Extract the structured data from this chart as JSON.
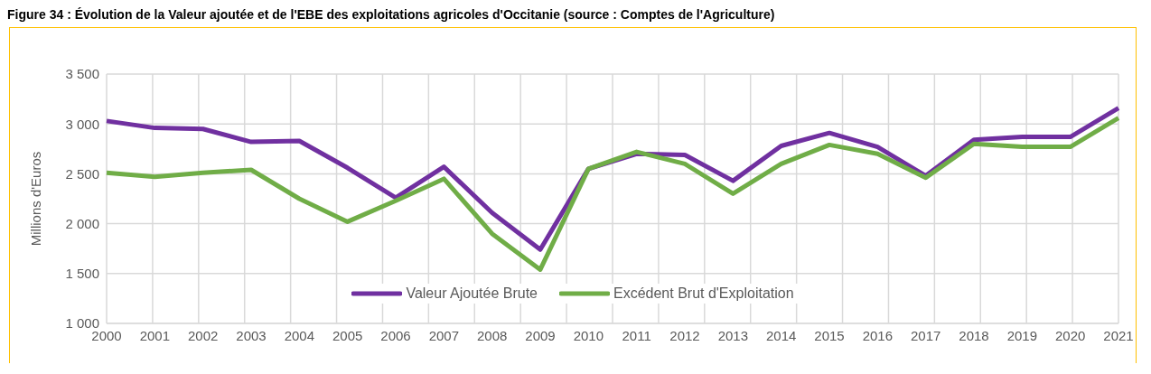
{
  "chart_data": {
    "type": "line",
    "title": "Figure 34 : Évolution de la Valeur ajoutée et de l'EBE des exploitations agricoles d'Occitanie (source : Comptes de l'Agriculture)",
    "ylabel": "Millions d'Euros",
    "categories": [
      "2000",
      "2001",
      "2002",
      "2003",
      "2004",
      "2005",
      "2006",
      "2007",
      "2008",
      "2009",
      "2010",
      "2011",
      "2012",
      "2013",
      "2014",
      "2015",
      "2016",
      "2017",
      "2018",
      "2019",
      "2020",
      "2021"
    ],
    "series": [
      {
        "name": "Valeur Ajoutée Brute",
        "color": "#7030a0",
        "values": [
          3030,
          2960,
          2950,
          2820,
          2830,
          2560,
          2260,
          2570,
          2110,
          1740,
          2550,
          2700,
          2690,
          2430,
          2780,
          2910,
          2770,
          2480,
          2840,
          2870,
          2870,
          3160
        ]
      },
      {
        "name": "Excédent Brut d'Exploitation",
        "color": "#70ad47",
        "values": [
          2510,
          2470,
          2510,
          2540,
          2250,
          2020,
          2230,
          2450,
          1900,
          1540,
          2550,
          2720,
          2600,
          2300,
          2600,
          2790,
          2700,
          2460,
          2800,
          2770,
          2770,
          3060
        ]
      }
    ],
    "ylim": [
      1000,
      3500
    ],
    "yticks": [
      {
        "value": 1000,
        "label": "1 000"
      },
      {
        "value": 1500,
        "label": "1 500"
      },
      {
        "value": 2000,
        "label": "2 000"
      },
      {
        "value": 2500,
        "label": "2 500"
      },
      {
        "value": 3000,
        "label": "3 000"
      },
      {
        "value": 3500,
        "label": "3 500"
      }
    ],
    "grid": true,
    "legend": "bottom",
    "marker": "none",
    "line_style": "solid"
  }
}
